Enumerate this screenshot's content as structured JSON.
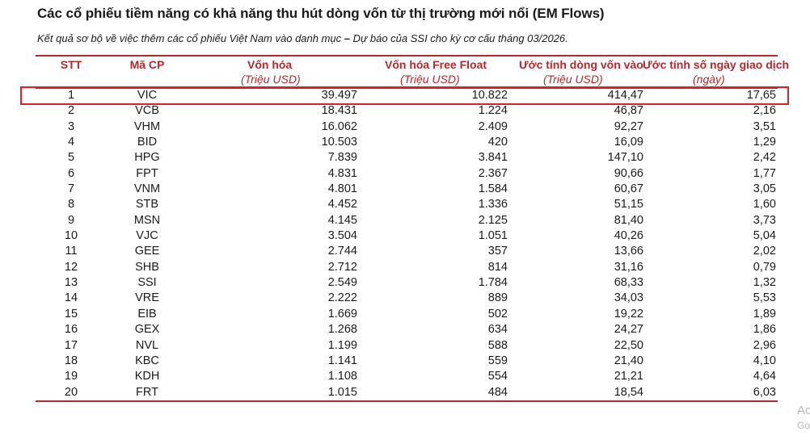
{
  "title": "Các cổ phiếu tiềm năng có khả năng thu hút dòng vốn từ thị trường mới nổi (EM Flows)",
  "subtitle_part1": "Kết quả sơ bộ về việc thêm các cổ phiếu Việt Nam vào danh mục",
  "subtitle_dash": " – ",
  "subtitle_part2": "Dự báo của SSI cho kỳ cơ cấu tháng 03/2026.",
  "colors": {
    "accent": "#b22a2e",
    "highlight": "#e01f26"
  },
  "headers": {
    "stt": "STT",
    "ma_cp": "Mã CP",
    "von_hoa": "Vốn hóa",
    "von_hoa_ff": "Vốn hóa Free Float",
    "dong_von": "Ước tính dòng vốn vào",
    "so_ngay": "Ước tính số ngày giao dịch",
    "unit_von_hoa": "(Triệu USD)",
    "unit_von_hoa_ff": "(Triệu USD)",
    "unit_dong_von": "(Triệu USD)",
    "unit_so_ngay": "(ngày)"
  },
  "rows": [
    {
      "stt": "1",
      "ma": "VIC",
      "vh": "39.497",
      "ff": "10.822",
      "dv": "414,47",
      "ng": "17,65"
    },
    {
      "stt": "2",
      "ma": "VCB",
      "vh": "18.431",
      "ff": "1.224",
      "dv": "46,87",
      "ng": "2,16"
    },
    {
      "stt": "3",
      "ma": "VHM",
      "vh": "16.062",
      "ff": "2.409",
      "dv": "92,27",
      "ng": "3,51"
    },
    {
      "stt": "4",
      "ma": "BID",
      "vh": "10.503",
      "ff": "420",
      "dv": "16,09",
      "ng": "1,29"
    },
    {
      "stt": "5",
      "ma": "HPG",
      "vh": "7.839",
      "ff": "3.841",
      "dv": "147,10",
      "ng": "2,42"
    },
    {
      "stt": "6",
      "ma": "FPT",
      "vh": "4.831",
      "ff": "2.367",
      "dv": "90,66",
      "ng": "1,77"
    },
    {
      "stt": "7",
      "ma": "VNM",
      "vh": "4.801",
      "ff": "1.584",
      "dv": "60,67",
      "ng": "3,05"
    },
    {
      "stt": "8",
      "ma": "STB",
      "vh": "4.452",
      "ff": "1.336",
      "dv": "51,15",
      "ng": "1,60"
    },
    {
      "stt": "9",
      "ma": "MSN",
      "vh": "4.145",
      "ff": "2.125",
      "dv": "81,40",
      "ng": "3,73"
    },
    {
      "stt": "10",
      "ma": "VJC",
      "vh": "3.504",
      "ff": "1.051",
      "dv": "40,26",
      "ng": "5,04"
    },
    {
      "stt": "11",
      "ma": "GEE",
      "vh": "2.744",
      "ff": "357",
      "dv": "13,66",
      "ng": "2,02"
    },
    {
      "stt": "12",
      "ma": "SHB",
      "vh": "2.712",
      "ff": "814",
      "dv": "31,16",
      "ng": "0,79"
    },
    {
      "stt": "13",
      "ma": "SSI",
      "vh": "2.549",
      "ff": "1.784",
      "dv": "68,33",
      "ng": "1,32"
    },
    {
      "stt": "14",
      "ma": "VRE",
      "vh": "2.222",
      "ff": "889",
      "dv": "34,03",
      "ng": "5,53"
    },
    {
      "stt": "15",
      "ma": "EIB",
      "vh": "1.669",
      "ff": "502",
      "dv": "19,22",
      "ng": "1,89"
    },
    {
      "stt": "16",
      "ma": "GEX",
      "vh": "1.268",
      "ff": "634",
      "dv": "24,27",
      "ng": "1,86"
    },
    {
      "stt": "17",
      "ma": "NVL",
      "vh": "1.199",
      "ff": "588",
      "dv": "22,50",
      "ng": "2,96"
    },
    {
      "stt": "18",
      "ma": "KBC",
      "vh": "1.141",
      "ff": "559",
      "dv": "21,40",
      "ng": "4,10"
    },
    {
      "stt": "19",
      "ma": "KDH",
      "vh": "1.108",
      "ff": "554",
      "dv": "21,21",
      "ng": "4,64"
    },
    {
      "stt": "20",
      "ma": "FRT",
      "vh": "1.015",
      "ff": "484",
      "dv": "18,54",
      "ng": "6,03"
    }
  ],
  "highlighted_row": "1",
  "watermark_line1": "Ac",
  "watermark_line2": "Go"
}
